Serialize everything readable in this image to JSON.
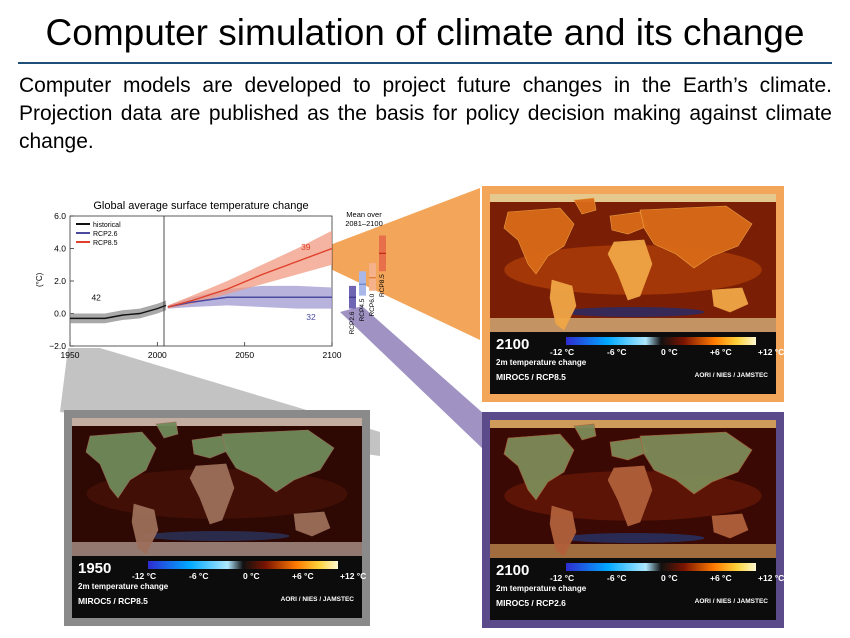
{
  "slide": {
    "title": "Computer simulation of climate and its change",
    "intro": "Computer models are developed to project future changes in the Earth’s climate. Projection data are published as the basis for policy decision making against climate change."
  },
  "colors": {
    "rule": "#1f4e79",
    "frame_orange": "#f3a65a",
    "frame_grey": "#8a8a8a",
    "frame_purple": "#5b4b8a",
    "historical": "#111111",
    "rcp26": "#4b4aa0",
    "rcp85": "#e0402a"
  },
  "chart_data": {
    "type": "line",
    "title": "Global average surface temperature change",
    "ylabel": "(°C)",
    "xlim": [
      1950,
      2100
    ],
    "ylim": [
      -2.0,
      6.0
    ],
    "yticks": [
      "6.0",
      "4.0",
      "2.0",
      "0.0",
      "−2.0"
    ],
    "xticks": [
      "1950",
      "2000",
      "2050",
      "2100"
    ],
    "legend_placement": "top-left",
    "series": [
      {
        "name": "historical",
        "x": [
          1950,
          1960,
          1970,
          1980,
          1990,
          2000,
          2005
        ],
        "y": [
          -0.3,
          -0.3,
          -0.3,
          -0.1,
          0.0,
          0.3,
          0.5
        ],
        "band_low": [
          -0.6,
          -0.6,
          -0.6,
          -0.4,
          -0.3,
          0.0,
          0.2
        ],
        "band_high": [
          0.0,
          0.0,
          0.0,
          0.2,
          0.3,
          0.6,
          0.8
        ],
        "count_label": "42"
      },
      {
        "name": "RCP2.6",
        "x": [
          2006,
          2020,
          2040,
          2060,
          2080,
          2100
        ],
        "y": [
          0.4,
          0.7,
          1.0,
          1.0,
          1.0,
          1.0
        ],
        "band_low": [
          0.3,
          0.4,
          0.5,
          0.4,
          0.3,
          0.3
        ],
        "band_high": [
          0.5,
          1.0,
          1.5,
          1.7,
          1.7,
          1.6
        ],
        "count_label": "32"
      },
      {
        "name": "RCP8.5",
        "x": [
          2006,
          2020,
          2040,
          2060,
          2080,
          2100
        ],
        "y": [
          0.4,
          0.8,
          1.5,
          2.4,
          3.2,
          4.0
        ],
        "band_low": [
          0.3,
          0.6,
          1.2,
          1.8,
          2.4,
          3.0
        ],
        "band_high": [
          0.5,
          1.1,
          2.0,
          3.0,
          4.0,
          5.1
        ],
        "count_label": "39"
      }
    ],
    "mean_panel": {
      "title_line1": "Mean over",
      "title_line2": "2081–2100",
      "bars": [
        {
          "name": "RCP2.6",
          "low": 0.3,
          "high": 1.7,
          "mean": 1.0
        },
        {
          "name": "RCP4.5",
          "low": 1.1,
          "high": 2.6,
          "mean": 1.8
        },
        {
          "name": "RCP6.0",
          "low": 1.4,
          "high": 3.1,
          "mean": 2.2
        },
        {
          "name": "RCP8.5",
          "low": 2.6,
          "high": 4.8,
          "mean": 3.7
        }
      ]
    }
  },
  "maps": {
    "top_right": {
      "year": "2100",
      "subtitle": "2m temperature change",
      "model": "MIROC5 / RCP8.5",
      "org": "AORI / NIES / JAMSTEC",
      "palette": "hot"
    },
    "bottom_left": {
      "year": "1950",
      "subtitle": "2m temperature change",
      "model": "MIROC5 / RCP8.5",
      "org": "AORI / NIES / JAMSTEC",
      "palette": "base"
    },
    "bottom_right": {
      "year": "2100",
      "subtitle": "2m temperature change",
      "model": "MIROC5 / RCP2.6",
      "org": "AORI / NIES / JAMSTEC",
      "palette": "mild"
    },
    "colorbar_ticks": [
      "-12 °C",
      "-6 °C",
      "0 °C",
      "+6 °C",
      "+12 °C"
    ]
  }
}
